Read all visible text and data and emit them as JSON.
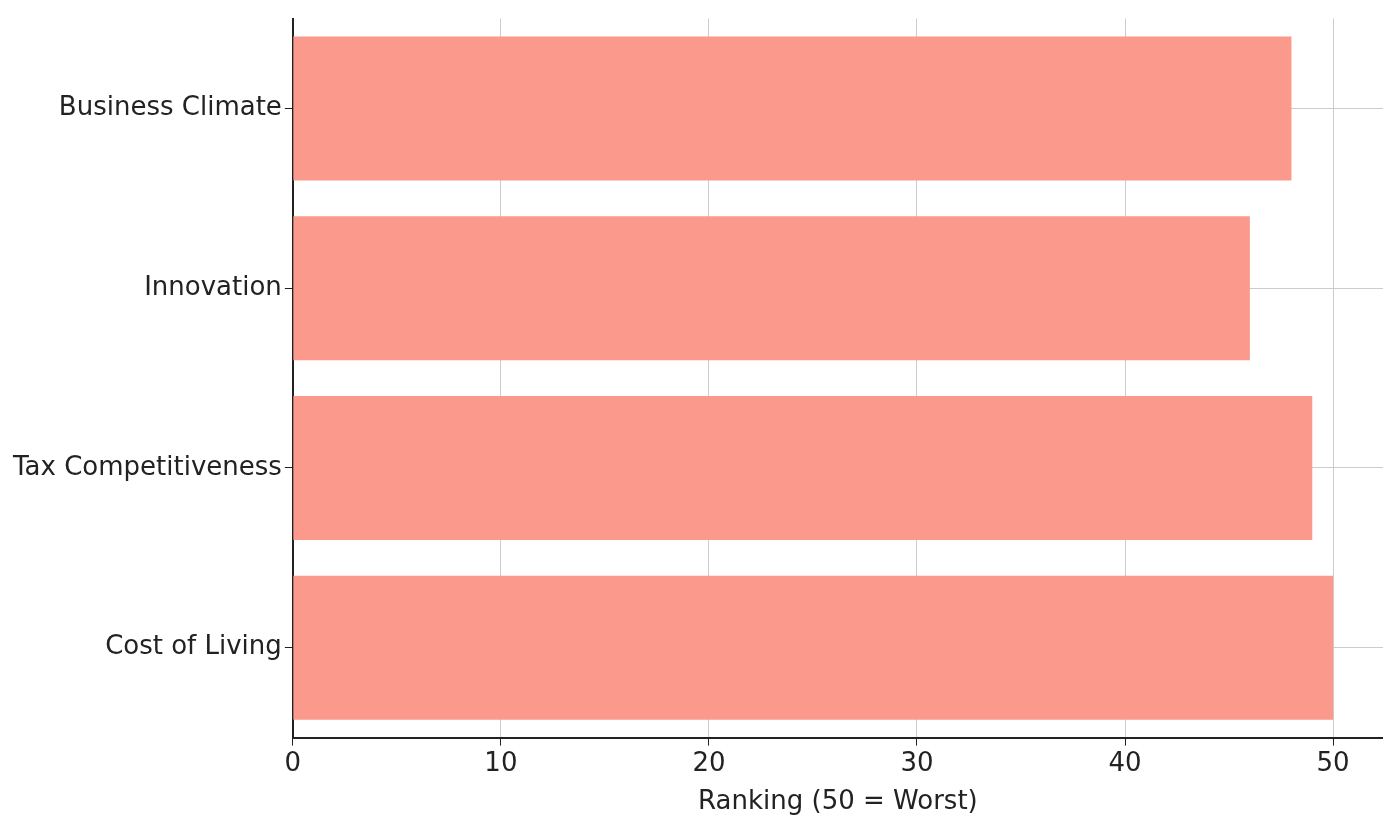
{
  "chart_data": {
    "type": "bar",
    "orientation": "horizontal",
    "categories": [
      "Business Climate",
      "Innovation",
      "Tax Competitiveness",
      "Cost of Living"
    ],
    "values": [
      48,
      46,
      49,
      50
    ],
    "color": "#fa998c",
    "xlabel": "Ranking (50 = Worst)",
    "xlim": [
      0,
      52.4
    ],
    "xticks": [
      0,
      10,
      20,
      30,
      40,
      50
    ],
    "grid": true,
    "legend": false
  }
}
